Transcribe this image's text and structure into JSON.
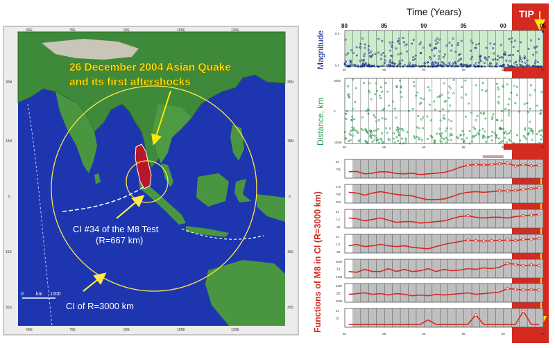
{
  "map": {
    "title_line1": "26 December 2004 Asian Quake",
    "title_line2": "and its first aftershocks",
    "ci_small_line1": "CI #34 of the M8 Test",
    "ci_small_line2": "(R=667 km)",
    "ci_large": "CI of R=3000 km",
    "lon_ticks": [
      "60E",
      "75E",
      "90E",
      "105E",
      "120E"
    ],
    "lat_ticks_left": [
      "30N",
      "15N",
      "0",
      "15S",
      "30S"
    ],
    "lat_ticks_right": [
      "30N",
      "15N",
      "0",
      "15S",
      "30S"
    ],
    "scale": {
      "start": "0",
      "unit": "km",
      "end": "1000"
    },
    "colors": {
      "ocean": "#1d36b0",
      "land": "#3f8a3a",
      "circle": "#ffe84a",
      "arrow": "#ffe84a",
      "title": "#ffe800"
    }
  },
  "header": {
    "time_label": "Time (Years)",
    "tip_label": "TIP",
    "year_ticks": [
      "80",
      "85",
      "90",
      "95",
      "00",
      "05"
    ]
  },
  "colors": {
    "tip": "#d42a20",
    "accent": "#d42a20",
    "magnitude_label": "#1a2e8c",
    "distance_label": "#1d9a46",
    "functions_label": "#d42a20"
  },
  "chart_data": [
    {
      "type": "scatter",
      "ylabel": "Magnitude",
      "x_range": [
        1980,
        2005
      ],
      "ylim": [
        5.0,
        8.0
      ],
      "y_ticks": [
        "8.0",
        "5.0"
      ],
      "x_ticks": [
        "80",
        "85",
        "90",
        "95",
        "00",
        "05"
      ],
      "note": "dense markers along the M5 floor; events shown as blue circles"
    },
    {
      "type": "scatter",
      "ylabel": "Distance, km",
      "x_range": [
        1980,
        2005
      ],
      "ylim": [
        -3000,
        3000
      ],
      "y_ticks": [
        "3000",
        "0",
        "-3000"
      ],
      "x_ticks": [
        "80",
        "85",
        "90",
        "95",
        "00",
        "05"
      ]
    },
    {
      "type": "line",
      "title": "Functions of M8 in CI (R=3000 km)",
      "x_range": [
        1980,
        2005
      ],
      "x_ticks": [
        "80",
        "85",
        "90",
        "95",
        "00",
        "05"
      ],
      "series": [
        {
          "name": "N1",
          "y_top": "51",
          "y_bottom": "",
          "x": [
            1980.5,
            1981.5,
            1982.5,
            1983.5,
            1984.5,
            1985.5,
            1986.5,
            1987.5,
            1988.5,
            1989.5,
            1990.5,
            1991.5,
            1992.5,
            1993.5,
            1994.5,
            1995.5,
            1996.5,
            1997.5,
            1998.5,
            1999.5,
            2000.5,
            2001.5,
            2002.5,
            2003.5,
            2004.5
          ],
          "values": [
            0.3,
            0.32,
            0.15,
            0.2,
            0.3,
            0.28,
            0.18,
            0.15,
            0.2,
            0.1,
            0.15,
            0.2,
            0.25,
            0.4,
            0.6,
            0.75,
            0.8,
            0.75,
            0.8,
            0.85,
            0.88,
            0.7,
            0.8,
            0.7,
            0.75
          ]
        },
        {
          "name": "N2",
          "y_top": "170",
          "y_bottom": "104",
          "x": [
            1980.5,
            1981.5,
            1982.5,
            1983.5,
            1984.5,
            1985.5,
            1986.5,
            1987.5,
            1988.5,
            1989.5,
            1990.5,
            1991.5,
            1992.5,
            1993.5,
            1994.5,
            1995.5,
            1996.5,
            1997.5,
            1998.5,
            1999.5,
            2000.5,
            2001.5,
            2002.5,
            2003.5,
            2004.5
          ],
          "values": [
            0.6,
            0.55,
            0.4,
            0.55,
            0.65,
            0.55,
            0.45,
            0.4,
            0.35,
            0.2,
            0.1,
            0.1,
            0.15,
            0.3,
            0.5,
            0.6,
            0.65,
            0.6,
            0.65,
            0.7,
            0.7,
            0.72,
            0.8,
            0.85,
            0.9
          ]
        },
        {
          "name": "L1",
          "y_top": "31",
          "y_bottom": "-36",
          "x": [
            1980.5,
            1981.5,
            1982.5,
            1983.5,
            1984.5,
            1985.5,
            1986.5,
            1987.5,
            1988.5,
            1989.5,
            1990.5,
            1991.5,
            1992.5,
            1993.5,
            1994.5,
            1995.5,
            1996.5,
            1997.5,
            1998.5,
            1999.5,
            2000.5,
            2001.5,
            2002.5,
            2003.5,
            2004.5
          ],
          "values": [
            0.55,
            0.5,
            0.35,
            0.45,
            0.55,
            0.4,
            0.25,
            0.3,
            0.3,
            0.2,
            0.25,
            0.3,
            0.35,
            0.5,
            0.65,
            0.7,
            0.6,
            0.55,
            0.6,
            0.6,
            0.55,
            0.65,
            0.7,
            0.75,
            0.8
          ]
        },
        {
          "name": "L2",
          "y_top": "31",
          "y_bottom": "-36",
          "x": [
            1980.5,
            1981.5,
            1982.5,
            1983.5,
            1984.5,
            1985.5,
            1986.5,
            1987.5,
            1988.5,
            1989.5,
            1990.5,
            1991.5,
            1992.5,
            1993.5,
            1994.5,
            1995.5,
            1996.5,
            1997.5,
            1998.5,
            1999.5,
            2000.5,
            2001.5,
            2002.5,
            2003.5,
            2004.5
          ],
          "values": [
            0.35,
            0.45,
            0.3,
            0.35,
            0.45,
            0.35,
            0.3,
            0.35,
            0.25,
            0.2,
            0.15,
            0.3,
            0.45,
            0.55,
            0.65,
            0.75,
            0.7,
            0.68,
            0.7,
            0.72,
            0.75,
            0.72,
            0.78,
            0.8,
            0.85
          ]
        },
        {
          "name": "Z1",
          "y_top": "3632",
          "y_bottom": "2723",
          "x": [
            1980.5,
            1981.5,
            1982.5,
            1983.5,
            1984.5,
            1985.5,
            1986.5,
            1987.5,
            1988.5,
            1989.5,
            1990.5,
            1991.5,
            1992.5,
            1993.5,
            1994.5,
            1995.5,
            1996.5,
            1997.5,
            1998.5,
            1999.5,
            2000.5,
            2001.5,
            2002.5,
            2003.5,
            2004.5
          ],
          "values": [
            0.3,
            0.25,
            0.45,
            0.3,
            0.3,
            0.5,
            0.3,
            0.45,
            0.3,
            0.35,
            0.5,
            0.3,
            0.45,
            0.35,
            0.4,
            0.5,
            0.45,
            0.55,
            0.5,
            0.6,
            0.85,
            0.8,
            0.7,
            0.75,
            0.72
          ]
        },
        {
          "name": "Z2",
          "y_top": "2457",
          "y_bottom": "2530",
          "x": [
            1980.5,
            1981.5,
            1982.5,
            1983.5,
            1984.5,
            1985.5,
            1986.5,
            1987.5,
            1988.5,
            1989.5,
            1990.5,
            1991.5,
            1992.5,
            1993.5,
            1994.5,
            1995.5,
            1996.5,
            1997.5,
            1998.5,
            1999.5,
            2000.5,
            2001.5,
            2002.5,
            2003.5,
            2004.5
          ],
          "values": [
            0.4,
            0.45,
            0.5,
            0.4,
            0.45,
            0.35,
            0.45,
            0.4,
            0.3,
            0.35,
            0.3,
            0.4,
            0.35,
            0.4,
            0.45,
            0.5,
            0.4,
            0.45,
            0.5,
            0.55,
            0.8,
            0.75,
            0.7,
            0.72,
            0.7
          ]
        },
        {
          "name": "B",
          "y_top": "21",
          "y_bottom": "",
          "x": [
            1980.5,
            1981.5,
            1982.5,
            1983.5,
            1984.5,
            1985.5,
            1986.5,
            1987.5,
            1988.5,
            1989.5,
            1990.5,
            1991.5,
            1992.5,
            1993.5,
            1994.5,
            1995.5,
            1996.5,
            1997.5,
            1998.5,
            1999.5,
            2000.5,
            2001.5,
            2002.5,
            2003.5,
            2004.5
          ],
          "values": [
            0.05,
            0.05,
            0.05,
            0.05,
            0.05,
            0.05,
            0.05,
            0.05,
            0.05,
            0.05,
            0.35,
            0.05,
            0.05,
            0.05,
            0.05,
            0.05,
            0.7,
            0.05,
            0.05,
            0.05,
            0.05,
            0.05,
            0.95,
            0.05,
            0.05
          ]
        }
      ]
    }
  ]
}
